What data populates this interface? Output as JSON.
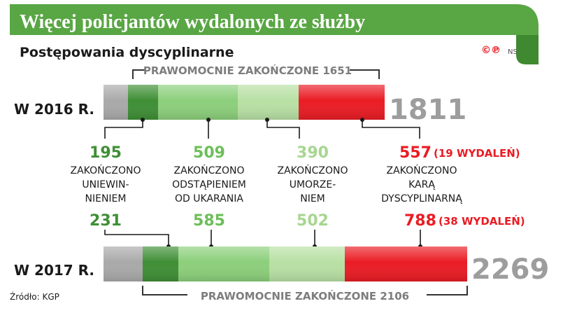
{
  "header": {
    "title": "Więcej policjantów wydalonych ze służby",
    "subtitle": "Postępowania dyscyplinarne",
    "badge": "©℗",
    "author": "NS"
  },
  "source": "Źródło: KGP",
  "colors": {
    "banner_green": "#59a644",
    "grey": "#a9a9a9",
    "dark_green": "#3f8f36",
    "mid_green": "#8ccf7b",
    "light_green": "#b8e0a4",
    "red": "#ea1c24",
    "bracket_grey": "#7d7d7d",
    "total_grey": "#9d9d9d"
  },
  "chart_data": {
    "type": "bar",
    "orientation": "horizontal",
    "stacked": true,
    "categories": [
      "ZAKOŃCZONO UNIEWIN-NIENIEM",
      "ZAKOŃCZONO ODSTĄPIENIEM OD UKARANIA",
      "ZAKOŃCZONO UMORZE-NIEM",
      "ZAKOŃCZONO KARĄ DYSCYPLINARNĄ"
    ],
    "category_lines": [
      [
        "ZAKOŃCZONO",
        "UNIEWIN-",
        "NIENIEM"
      ],
      [
        "ZAKOŃCZONO",
        "ODSTĄPIENIEM",
        "OD UKARANIA"
      ],
      [
        "ZAKOŃCZONO",
        "UMORZE-",
        "NIEM"
      ],
      [
        "ZAKOŃCZONO",
        "KARĄ",
        "DYSCYPLINARNĄ"
      ]
    ],
    "years": [
      {
        "label": "W 2016 R.",
        "total": 1811,
        "total_label": "1811",
        "unfinished": 160,
        "finalized": 1651,
        "finalized_label": "PRAWOMOCNIE ZAKOŃCZONE 1651",
        "values": [
          195,
          509,
          390,
          557
        ],
        "value_labels": [
          "195",
          "509",
          "390",
          "557"
        ],
        "note": "(19 WYDALEŃ)"
      },
      {
        "label": "W 2017 R.",
        "total": 2269,
        "total_label": "2269",
        "unfinished": 163,
        "finalized": 2106,
        "finalized_label": "PRAWOMOCNIE ZAKOŃCZONE 2106",
        "values": [
          231,
          585,
          502,
          788
        ],
        "value_labels": [
          "231",
          "585",
          "502",
          "788"
        ],
        "note": "(38 WYDALEŃ)"
      }
    ]
  }
}
